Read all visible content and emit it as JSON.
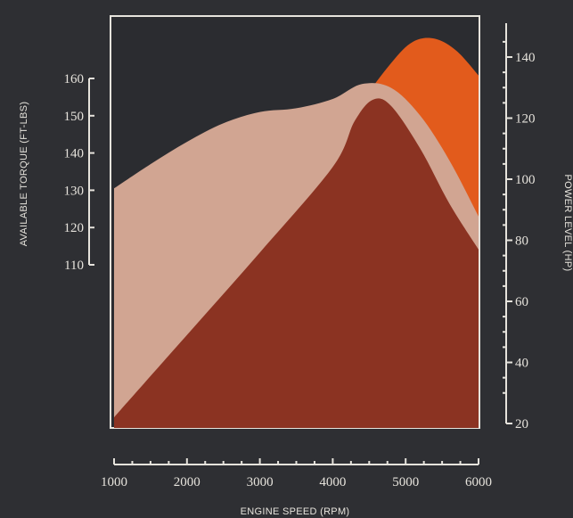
{
  "chart_data": {
    "type": "area",
    "title": "",
    "xlabel": "ENGINE SPEED (RPM)",
    "ylabel_left": "AVAILABLE TORQUE (FT-LBS)",
    "ylabel_right": "POWER LEVEL (HP)",
    "xlim": [
      1000,
      6000
    ],
    "ylim_left": [
      110,
      160
    ],
    "ylim_right": [
      20,
      140
    ],
    "x_ticks": [
      "1000",
      "2000",
      "3000",
      "4000",
      "5000",
      "6000"
    ],
    "y_left_ticks": [
      "110",
      "120",
      "130",
      "140",
      "150",
      "160"
    ],
    "y_right_ticks": [
      "20",
      "40",
      "60",
      "80",
      "100",
      "120",
      "140"
    ],
    "grid": false,
    "series": [
      {
        "axis": "right",
        "color": "#e25b1c",
        "x": [
          1000,
          2000,
          3000,
          4000,
          4400,
          4800,
          5100,
          5400,
          5700,
          6000
        ],
        "values": [
          24,
          50,
          78,
          108,
          125,
          138,
          145,
          146,
          142,
          134
        ]
      },
      {
        "axis": "left",
        "color": "#d1a592",
        "x": [
          1000,
          1500,
          2000,
          2500,
          3000,
          3500,
          4000,
          4400,
          4800,
          5200,
          5600,
          6000
        ],
        "values": [
          130.5,
          137,
          143,
          148,
          151,
          152,
          154.5,
          158.5,
          157.5,
          150,
          138,
          123
        ]
      },
      {
        "axis": "right",
        "color": "#8b3322",
        "x": [
          1000,
          2000,
          3000,
          4000,
          4300,
          4550,
          4800,
          5200,
          5600,
          6000
        ],
        "values": [
          22,
          49,
          76,
          104,
          119,
          126,
          124,
          110,
          92,
          77
        ]
      }
    ]
  }
}
